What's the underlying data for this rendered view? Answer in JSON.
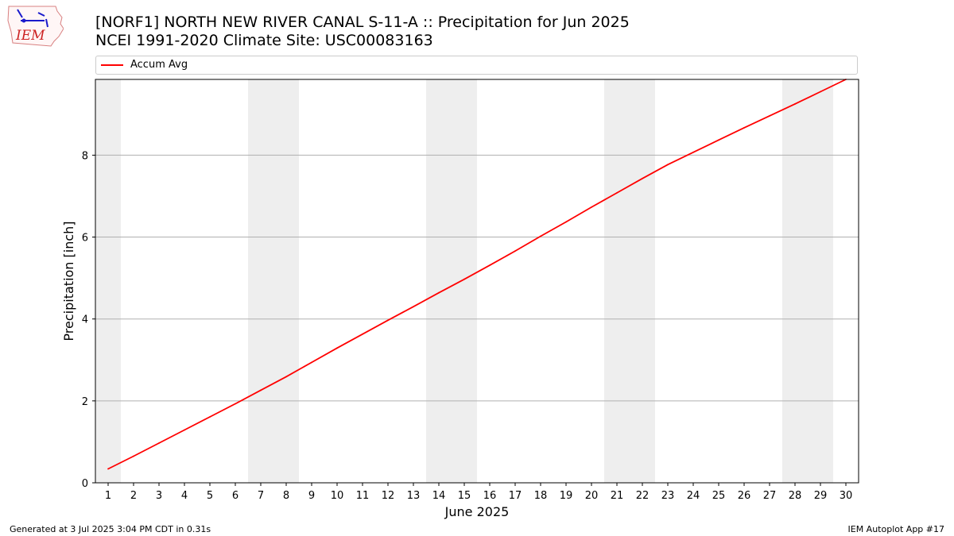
{
  "title": "[NORF1] NORTH NEW RIVER CANAL S-11-A :: Precipitation for Jun 2025",
  "subtitle": "NCEI 1991-2020 Climate Site: USC00083163",
  "logo_text": "IEM",
  "footer": {
    "left": "Generated at 3 Jul 2025 3:04 PM CDT in 0.31s",
    "right": "IEM Autoplot App #17"
  },
  "colors": {
    "series": "#ff0000",
    "weekend_band": "#eeeeee",
    "grid": "#b0b0b0"
  },
  "chart_data": {
    "type": "line",
    "title": "[NORF1] NORTH NEW RIVER CANAL S-11-A :: Precipitation for Jun 2025",
    "subtitle": "NCEI 1991-2020 Climate Site: USC00083163",
    "xlabel": "June 2025",
    "ylabel": "Precipitation [inch]",
    "xlim": [
      0.5,
      30.5
    ],
    "ylim": [
      0,
      9.85
    ],
    "grid": "horizontal",
    "legend_position": "top",
    "x_ticks": [
      1,
      2,
      3,
      4,
      5,
      6,
      7,
      8,
      9,
      10,
      11,
      12,
      13,
      14,
      15,
      16,
      17,
      18,
      19,
      20,
      21,
      22,
      23,
      24,
      25,
      26,
      27,
      28,
      29,
      30
    ],
    "y_ticks": [
      0,
      2,
      4,
      6,
      8
    ],
    "weekend_bands": [
      [
        0.5,
        1.5
      ],
      [
        6.5,
        8.5
      ],
      [
        13.5,
        15.5
      ],
      [
        20.5,
        22.5
      ],
      [
        27.5,
        29.5
      ]
    ],
    "series": [
      {
        "name": "Accum Avg",
        "color": "#ff0000",
        "x": [
          1,
          2,
          3,
          4,
          5,
          6,
          7,
          8,
          9,
          10,
          11,
          12,
          13,
          14,
          15,
          16,
          17,
          18,
          19,
          20,
          21,
          22,
          23,
          24,
          25,
          26,
          27,
          28,
          29,
          30
        ],
        "y": [
          0.34,
          0.65,
          0.97,
          1.29,
          1.61,
          1.93,
          2.26,
          2.59,
          2.94,
          3.29,
          3.63,
          3.97,
          4.3,
          4.64,
          4.97,
          5.31,
          5.66,
          6.02,
          6.37,
          6.73,
          7.08,
          7.43,
          7.77,
          8.07,
          8.37,
          8.67,
          8.96,
          9.25,
          9.55,
          9.85
        ]
      }
    ]
  }
}
